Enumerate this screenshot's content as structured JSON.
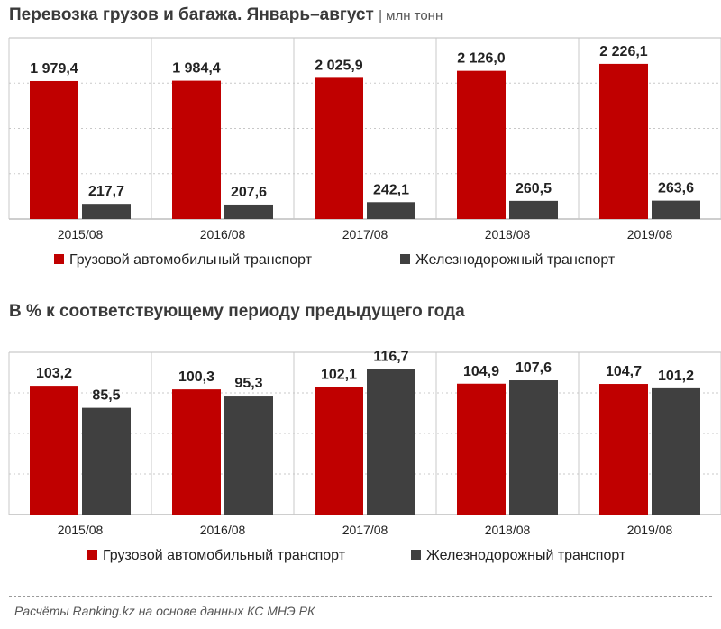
{
  "header1": {
    "title": "Перевозка грузов и багажа. Январь–август",
    "unit": "| млн тонн"
  },
  "header2": {
    "title": "В % к соответствующему периоду предыдущего года"
  },
  "footer": {
    "source": "Расчёты Ranking.kz на основе данных КС МНЭ РК"
  },
  "colors": {
    "road": "#c00000",
    "rail": "#404040",
    "grid": "#c8c8c8"
  },
  "chart_data": [
    {
      "type": "bar",
      "title": "Перевозка грузов и багажа. Январь–август",
      "unit": "млн тонн",
      "categories": [
        "2015/08",
        "2016/08",
        "2017/08",
        "2018/08",
        "2019/08"
      ],
      "series": [
        {
          "name": "Грузовой автомобильный транспорт",
          "values": [
            1979.4,
            1984.4,
            2025.9,
            2126.0,
            2226.1
          ],
          "labels": [
            "1 979,4",
            "1 984,4",
            "2 025,9",
            "2 126,0",
            "2 226,1"
          ]
        },
        {
          "name": "Железнодорожный транспорт",
          "values": [
            217.7,
            207.6,
            242.1,
            260.5,
            263.6
          ],
          "labels": [
            "217,7",
            "207,6",
            "242,1",
            "260,5",
            "263,6"
          ]
        }
      ],
      "ylim": [
        0,
        2600
      ],
      "legend": "bottom"
    },
    {
      "type": "bar",
      "title": "В % к соответствующему периоду предыдущего года",
      "categories": [
        "2015/08",
        "2016/08",
        "2017/08",
        "2018/08",
        "2019/08"
      ],
      "series": [
        {
          "name": "Грузовой автомобильный транспорт",
          "values": [
            103.2,
            100.3,
            102.1,
            104.9,
            104.7
          ],
          "labels": [
            "103,2",
            "100,3",
            "102,1",
            "104,9",
            "104,7"
          ]
        },
        {
          "name": "Железнодорожный транспорт",
          "values": [
            85.5,
            95.3,
            116.7,
            107.6,
            101.2
          ],
          "labels": [
            "85,5",
            "95,3",
            "116,7",
            "107,6",
            "101,2"
          ]
        }
      ],
      "ylim": [
        0,
        130
      ],
      "legend": "bottom"
    }
  ]
}
